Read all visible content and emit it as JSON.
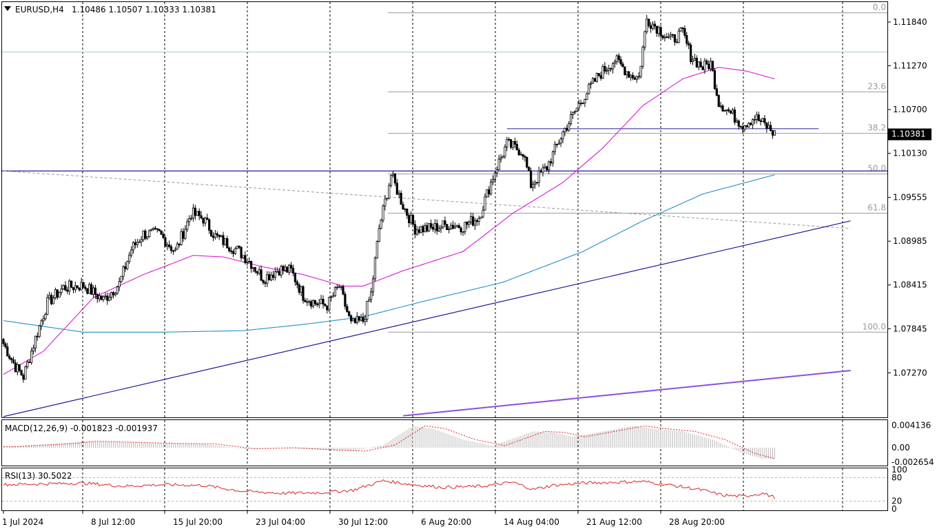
{
  "chart_data": {
    "type": "candlestick",
    "symbol_header": "EURUSD,H4",
    "ohlc_header": "1.10486 1.10507 1.10333 1.10381",
    "last_price_label": "1.10381",
    "ylim": [
      1.0669,
      1.121
    ],
    "price_ticks": [
      "1.11840",
      "1.11270",
      "1.10700",
      "1.10130",
      "1.09555",
      "1.08985",
      "1.08415",
      "1.07845",
      "1.07270"
    ],
    "time_labels": [
      "1 Jul 2024",
      "8 Jul 12:00",
      "15 Jul 20:00",
      "23 Jul 04:00",
      "30 Jul 12:00",
      "6 Aug 20:00",
      "14 Aug 04:00",
      "21 Aug 12:00",
      "28 Aug 20:00"
    ],
    "fibonacci": [
      {
        "level": "0.0",
        "price": 1.1196
      },
      {
        "level": "23.6",
        "price": 1.1093
      },
      {
        "level": "38.2",
        "price": 1.1039
      },
      {
        "level": "50.0",
        "price": 1.0986
      },
      {
        "level": "61.8",
        "price": 1.0935
      },
      {
        "level": "100.0",
        "price": 1.078
      }
    ],
    "anchor_closes": [
      [
        0,
        1.0765
      ],
      [
        6,
        1.0735
      ],
      [
        10,
        1.0722
      ],
      [
        16,
        1.0772
      ],
      [
        22,
        1.0818
      ],
      [
        30,
        1.0838
      ],
      [
        40,
        1.0841
      ],
      [
        50,
        1.0822
      ],
      [
        58,
        1.0843
      ],
      [
        64,
        1.0888
      ],
      [
        70,
        1.0908
      ],
      [
        78,
        1.0908
      ],
      [
        86,
        1.0885
      ],
      [
        94,
        1.0935
      ],
      [
        100,
        1.0928
      ],
      [
        106,
        1.0905
      ],
      [
        112,
        1.0895
      ],
      [
        118,
        1.0885
      ],
      [
        124,
        1.087
      ],
      [
        130,
        1.085
      ],
      [
        138,
        1.0862
      ],
      [
        144,
        1.086
      ],
      [
        150,
        1.0828
      ],
      [
        156,
        1.0818
      ],
      [
        162,
        1.0815
      ],
      [
        168,
        1.084
      ],
      [
        174,
        1.079
      ],
      [
        180,
        1.0795
      ],
      [
        184,
        1.083
      ],
      [
        188,
        1.0915
      ],
      [
        194,
        1.0985
      ],
      [
        200,
        1.0945
      ],
      [
        206,
        1.0915
      ],
      [
        214,
        1.0915
      ],
      [
        222,
        1.092
      ],
      [
        230,
        1.0918
      ],
      [
        238,
        1.093
      ],
      [
        246,
        1.099
      ],
      [
        252,
        1.1025
      ],
      [
        260,
        1.1015
      ],
      [
        264,
        1.0972
      ],
      [
        272,
        1.0995
      ],
      [
        280,
        1.104
      ],
      [
        290,
        1.1085
      ],
      [
        298,
        1.1115
      ],
      [
        306,
        1.1135
      ],
      [
        314,
        1.1115
      ],
      [
        318,
        1.1112
      ],
      [
        322,
        1.1188
      ],
      [
        328,
        1.1175
      ],
      [
        334,
        1.116
      ],
      [
        340,
        1.117
      ],
      [
        344,
        1.114
      ],
      [
        350,
        1.1125
      ],
      [
        354,
        1.113
      ],
      [
        358,
        1.108
      ],
      [
        364,
        1.1065
      ],
      [
        370,
        1.105
      ],
      [
        376,
        1.106
      ],
      [
        382,
        1.1048
      ],
      [
        386,
        1.1038
      ]
    ],
    "indicators": {
      "ma_fast_color": "#d81ad8",
      "ma_fast": [
        [
          0,
          1.0725
        ],
        [
          20,
          1.0755
        ],
        [
          45,
          1.0825
        ],
        [
          70,
          1.0855
        ],
        [
          95,
          1.088
        ],
        [
          110,
          1.0878
        ],
        [
          130,
          1.0865
        ],
        [
          150,
          1.0855
        ],
        [
          170,
          1.084
        ],
        [
          180,
          1.084
        ],
        [
          200,
          1.086
        ],
        [
          230,
          1.0885
        ],
        [
          255,
          1.0935
        ],
        [
          280,
          1.0975
        ],
        [
          300,
          1.102
        ],
        [
          320,
          1.1075
        ],
        [
          340,
          1.111
        ],
        [
          358,
          1.1125
        ],
        [
          372,
          1.112
        ],
        [
          386,
          1.111
        ]
      ],
      "ma_slow_color": "#1e90c8",
      "ma_slow": [
        [
          0,
          1.0795
        ],
        [
          40,
          1.078
        ],
        [
          80,
          1.078
        ],
        [
          120,
          1.0782
        ],
        [
          150,
          1.079
        ],
        [
          180,
          1.08
        ],
        [
          210,
          1.082
        ],
        [
          250,
          1.0845
        ],
        [
          290,
          1.0885
        ],
        [
          320,
          1.0925
        ],
        [
          350,
          1.096
        ],
        [
          386,
          1.0985
        ]
      ],
      "trendline_color": "#1a1a9c",
      "trendline": [
        [
          0,
          1.067
        ],
        [
          424,
          1.0925
        ]
      ],
      "trendline2_color": "#8a4fd8",
      "trendline2": [
        [
          200,
          1.0671
        ],
        [
          424,
          1.073
        ]
      ],
      "dotted_line": [
        [
          0,
          1.099
        ],
        [
          424,
          1.0915
        ]
      ],
      "resistance_line": {
        "price": 1.099
      },
      "horizontal_cyan": {
        "price": 1.1145
      },
      "horizontal_blue": {
        "x_from": 252,
        "x_to": 408,
        "price": 1.1045
      }
    }
  },
  "macd": {
    "label": "MACD(12,26,9) -0.001823 -0.001937",
    "scale": [
      "0.004136",
      "0.00",
      "-0.002654"
    ]
  },
  "rsi": {
    "label": "RSI(13) 30.5022",
    "scale": [
      "100",
      "80",
      "20",
      "0"
    ]
  },
  "colors": {
    "grid": "#000000",
    "candle_up": "#ffffff",
    "candle_down": "#000000",
    "macd_hist": "#b8b8b8",
    "macd_signal": "#e02020",
    "rsi_line": "#e02020",
    "fib": "#9a9a9a"
  }
}
